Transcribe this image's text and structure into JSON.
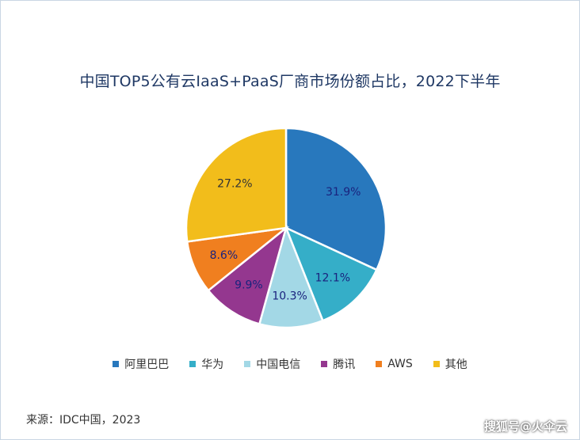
{
  "chart_data": {
    "type": "pie",
    "title": "中国TOP5公有云IaaS+PaaS厂商市场份额占比，2022下半年",
    "categories": [
      "阿里巴巴",
      "华为",
      "中国电信",
      "腾讯",
      "AWS",
      "其他"
    ],
    "values": [
      31.9,
      12.1,
      10.3,
      9.9,
      8.6,
      27.2
    ],
    "labels": [
      "31.9%",
      "12.1%",
      "10.3%",
      "9.9%",
      "8.6%",
      "27.2%"
    ],
    "colors": [
      "#2878bd",
      "#35aec8",
      "#a3d8e6",
      "#94378f",
      "#f07f1f",
      "#f2bd1b"
    ],
    "label_colors": [
      "#1a237e",
      "#1a237e",
      "#1a237e",
      "#1a237e",
      "#1a237e",
      "#333333"
    ],
    "legend_position": "bottom",
    "start": "12-o'clock",
    "direction": "clockwise"
  },
  "source": "来源：IDC中国，2023",
  "watermark": "搜狐号@火伞云"
}
